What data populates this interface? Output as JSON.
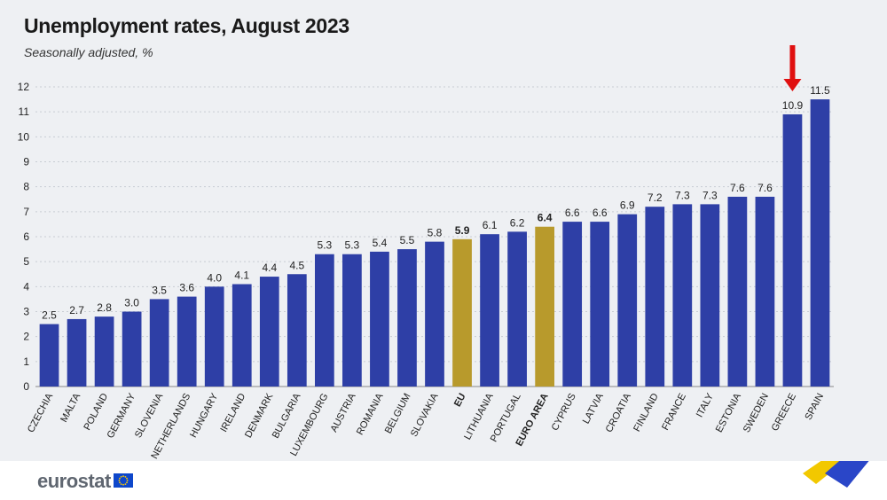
{
  "header": {
    "title": "Unemployment rates, August 2023",
    "subtitle": "Seasonally adjusted, %"
  },
  "footer": {
    "logo_text": "eurostat"
  },
  "colors": {
    "country_bar": "#2e3fa6",
    "aggregate_bar": "#b89a2c",
    "highlight_arrow": "#e01010",
    "background": "#eef0f3"
  },
  "chart_data": {
    "type": "bar",
    "title": "Unemployment rates, August 2023",
    "subtitle": "Seasonally adjusted, %",
    "xlabel": "",
    "ylabel": "",
    "ylim": [
      0,
      12
    ],
    "yticks": [
      0,
      1,
      2,
      3,
      4,
      5,
      6,
      7,
      8,
      9,
      10,
      11,
      12
    ],
    "grid": true,
    "categories": [
      "CZECHIA",
      "MALTA",
      "POLAND",
      "GERMANY",
      "SLOVENIA",
      "NETHERLANDS",
      "HUNGARY",
      "IRELAND",
      "DENMARK",
      "BULGARIA",
      "LUXEMBOURG",
      "AUSTRIA",
      "ROMANIA",
      "BELGIUM",
      "SLOVAKIA",
      "EU",
      "LITHUANIA",
      "PORTUGAL",
      "EURO AREA",
      "CYPRUS",
      "LATVIA",
      "CROATIA",
      "FINLAND",
      "FRANCE",
      "ITALY",
      "ESTONIA",
      "SWEDEN",
      "GREECE",
      "SPAIN"
    ],
    "values": [
      2.5,
      2.7,
      2.8,
      3.0,
      3.5,
      3.6,
      4.0,
      4.1,
      4.4,
      4.5,
      5.3,
      5.3,
      5.4,
      5.5,
      5.8,
      5.9,
      6.1,
      6.2,
      6.4,
      6.6,
      6.6,
      6.9,
      7.2,
      7.3,
      7.3,
      7.6,
      7.6,
      10.9,
      11.5
    ],
    "value_labels": [
      "2.5",
      "2.7",
      "2.8",
      "3.0",
      "3.5",
      "3.6",
      "4.0",
      "4.1",
      "4.4",
      "4.5",
      "5.3",
      "5.3",
      "5.4",
      "5.5",
      "5.8",
      "5.9",
      "6.1",
      "6.2",
      "6.4",
      "6.6",
      "6.6",
      "6.9",
      "7.2",
      "7.3",
      "7.3",
      "7.6",
      "7.6",
      "10.9",
      "11.5"
    ],
    "aggregates": [
      "EU",
      "EURO AREA"
    ],
    "highlighted": "GREECE"
  }
}
